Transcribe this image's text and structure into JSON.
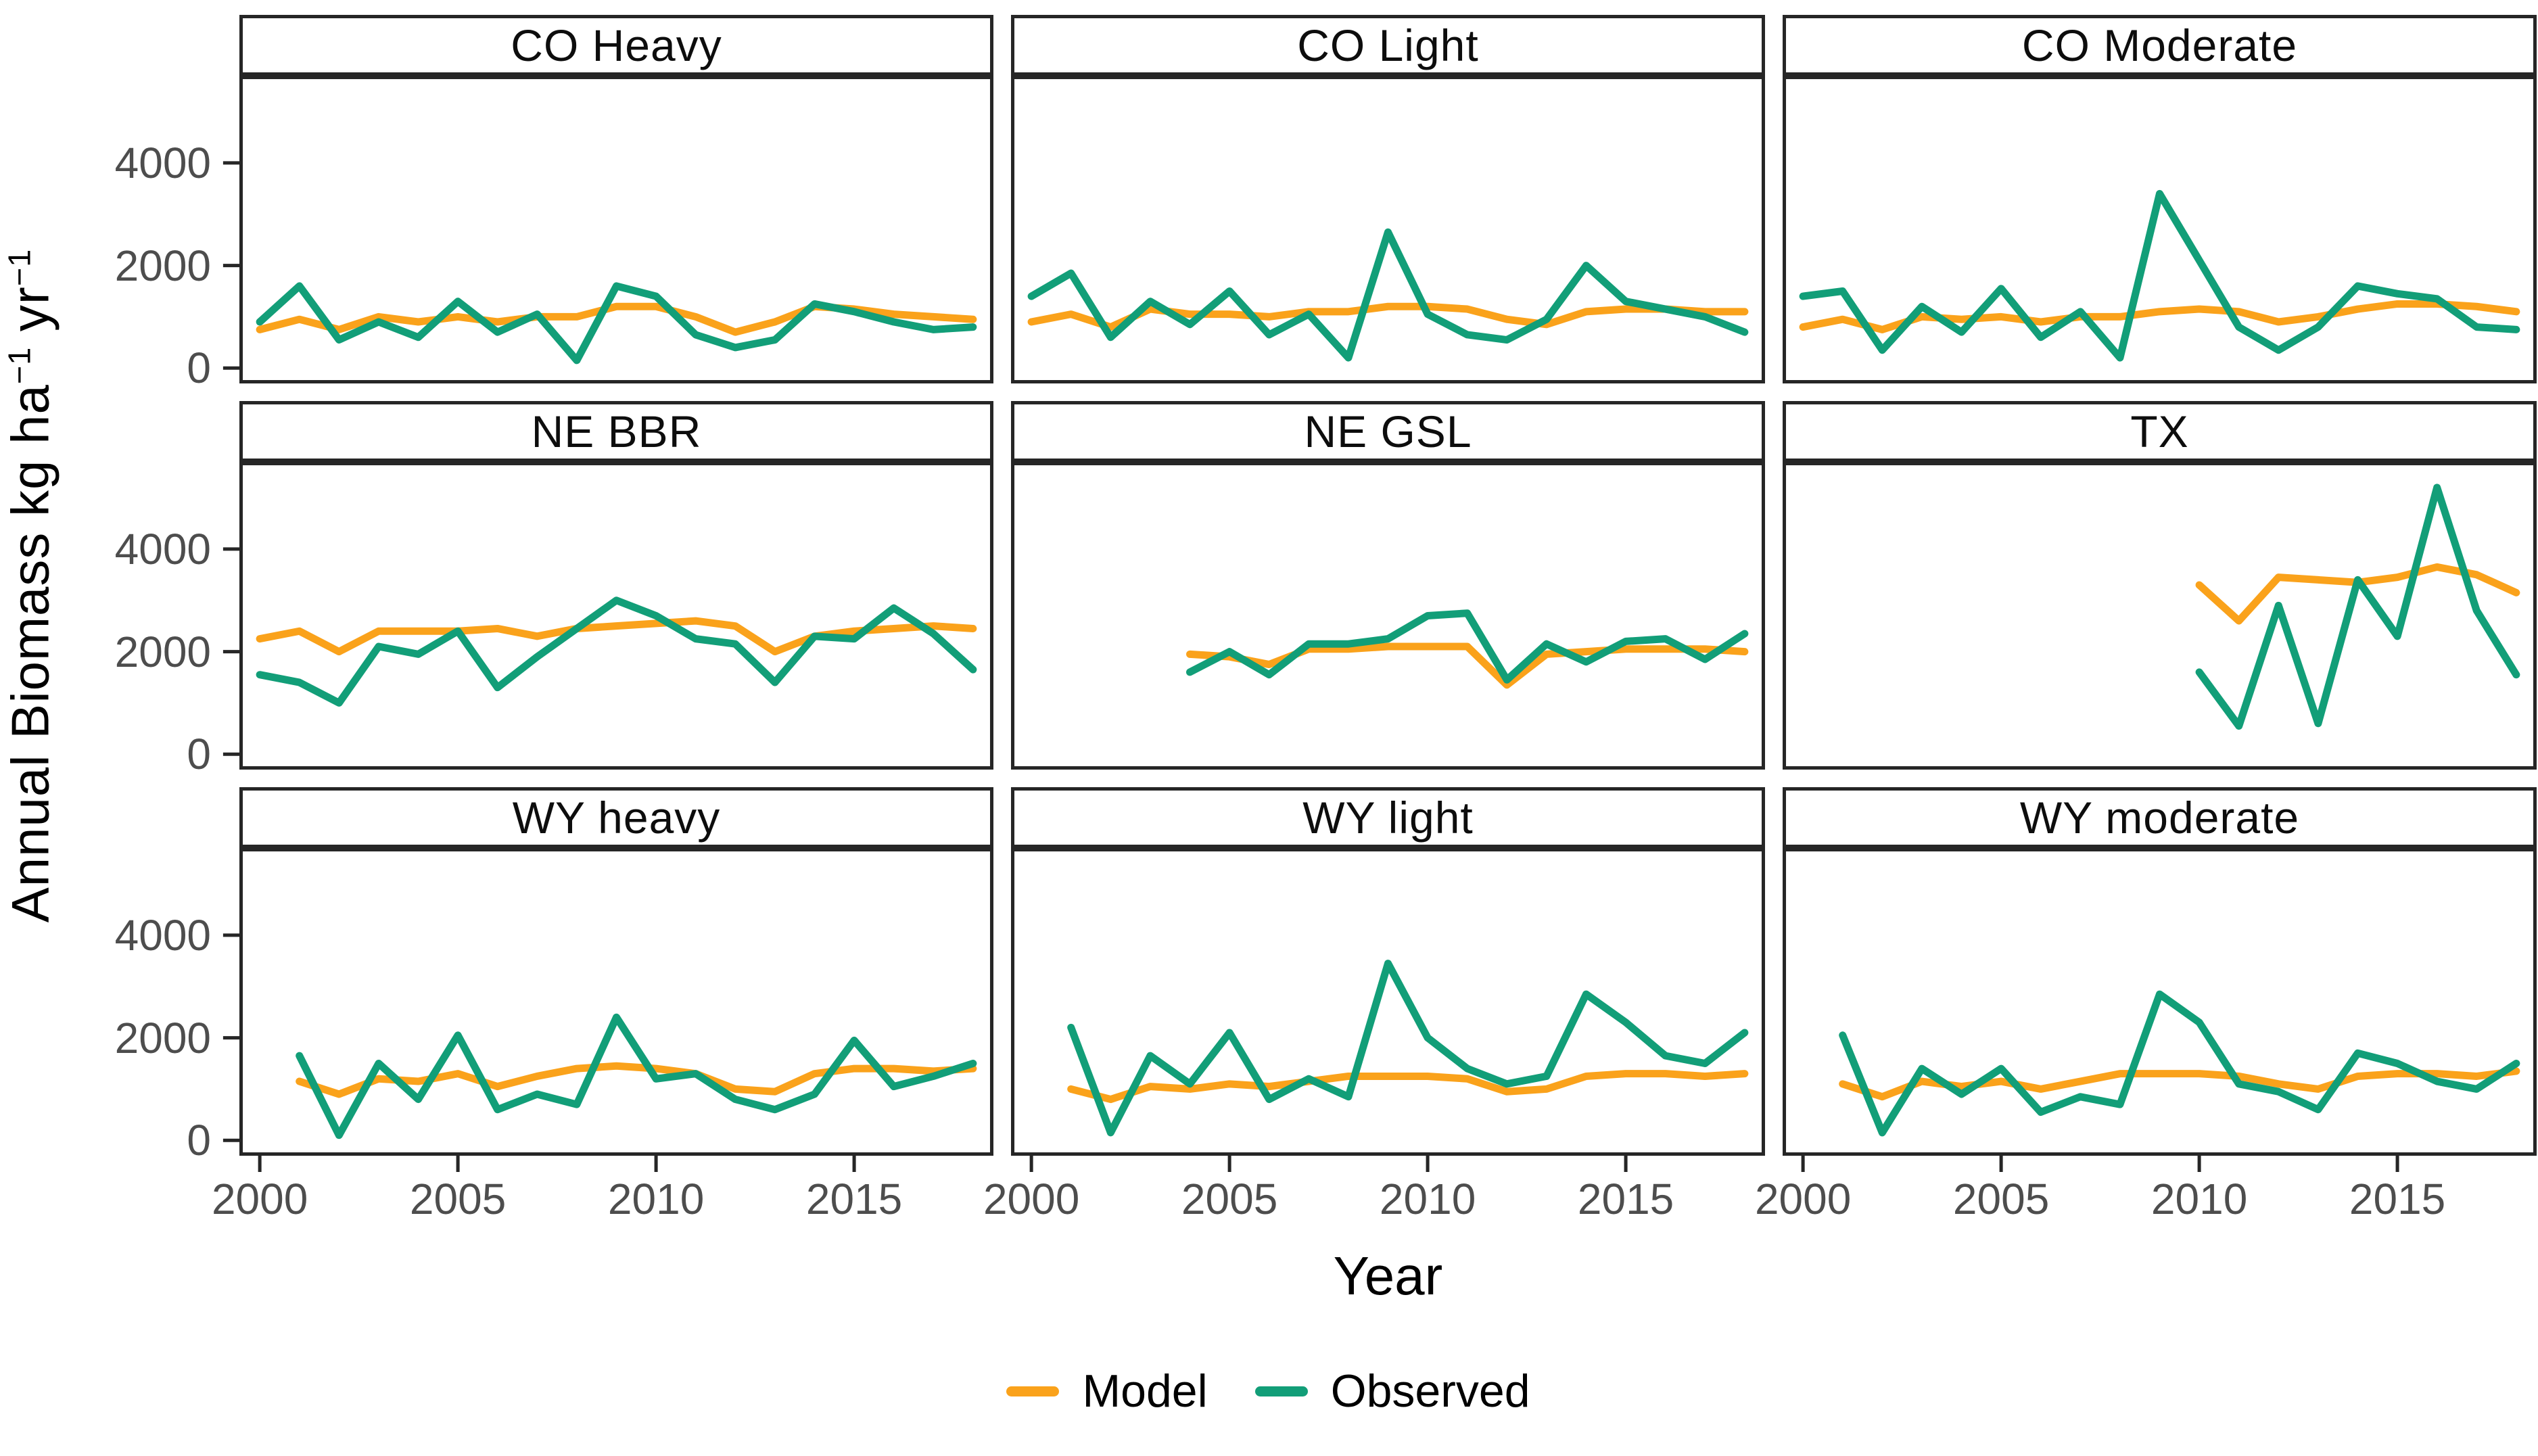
{
  "figure": {
    "xlabel": "Year",
    "ylabel_parts": {
      "pre": "Annual Biomass kg ha",
      "sup1": "−1",
      "mid": " yr",
      "sup2": "−1"
    }
  },
  "chart_data": {
    "type": "line",
    "title": "",
    "xlabel": "Year",
    "ylabel": "Annual Biomass kg ha-1 yr-1",
    "grid": "off",
    "legend_position": "bottom",
    "x_domain": [
      1999.5,
      2018.5
    ],
    "y_domain": [
      -300,
      5700
    ],
    "x_ticks": [
      2000,
      2005,
      2010,
      2015
    ],
    "x_tick_labels": [
      "2000",
      "2005",
      "2010",
      "2015"
    ],
    "y_ticks": [
      4000,
      2000,
      0
    ],
    "y_tick_labels": [
      "4000",
      "2000",
      "0"
    ],
    "legend": [
      {
        "label": "Model",
        "color": "#FAA21B"
      },
      {
        "label": "Observed",
        "color": "#129E78"
      }
    ],
    "facets": [
      {
        "title": "CO Heavy",
        "start_year": 2000,
        "model": [
          750,
          950,
          750,
          1000,
          900,
          1000,
          900,
          1000,
          1000,
          1200,
          1200,
          1000,
          700,
          900,
          1200,
          1150,
          1050,
          1000,
          950
        ],
        "observed": [
          900,
          1600,
          550,
          900,
          600,
          1300,
          700,
          1050,
          150,
          1600,
          1400,
          650,
          400,
          550,
          1250,
          1100,
          900,
          750,
          800
        ]
      },
      {
        "title": "CO Light",
        "start_year": 2000,
        "model": [
          900,
          1050,
          800,
          1150,
          1050,
          1050,
          1000,
          1100,
          1100,
          1200,
          1200,
          1150,
          950,
          850,
          1100,
          1150,
          1150,
          1100,
          1100
        ],
        "observed": [
          1400,
          1850,
          600,
          1300,
          850,
          1500,
          650,
          1050,
          200,
          2650,
          1050,
          650,
          550,
          950,
          2000,
          1300,
          1150,
          1000,
          700
        ]
      },
      {
        "title": "CO Moderate",
        "start_year": 2000,
        "model": [
          800,
          950,
          750,
          1000,
          950,
          1000,
          900,
          1000,
          1000,
          1100,
          1150,
          1100,
          900,
          1000,
          1150,
          1250,
          1250,
          1200,
          1100
        ],
        "observed": [
          1400,
          1500,
          350,
          1200,
          700,
          1550,
          600,
          1100,
          200,
          3400,
          2100,
          800,
          350,
          800,
          1600,
          1450,
          1350,
          800,
          750
        ]
      },
      {
        "title": "NE BBR",
        "start_year": 2000,
        "model": [
          2250,
          2400,
          2000,
          2400,
          2400,
          2400,
          2450,
          2300,
          2450,
          2500,
          2550,
          2600,
          2500,
          2000,
          2300,
          2400,
          2450,
          2500,
          2450
        ],
        "observed": [
          1550,
          1400,
          1000,
          2100,
          1950,
          2400,
          1300,
          1900,
          2450,
          3000,
          2700,
          2250,
          2150,
          1400,
          2300,
          2250,
          2850,
          2350,
          1650
        ]
      },
      {
        "title": "NE GSL",
        "start_year": 2004,
        "model": [
          1950,
          1900,
          1750,
          2050,
          2050,
          2100,
          2100,
          2100,
          1350,
          1950,
          2000,
          2050,
          2050,
          2050,
          2000
        ],
        "observed": [
          1600,
          2000,
          1550,
          2150,
          2150,
          2250,
          2700,
          2750,
          1450,
          2150,
          1800,
          2200,
          2250,
          1850,
          2350
        ]
      },
      {
        "title": "TX",
        "start_year": 2010,
        "model": [
          3300,
          2600,
          3450,
          3400,
          3350,
          3450,
          3650,
          3500,
          3150
        ],
        "observed": [
          1600,
          550,
          2900,
          600,
          3400,
          2300,
          5200,
          2800,
          1550
        ]
      },
      {
        "title": "WY heavy",
        "start_year": 2001,
        "model": [
          1150,
          900,
          1200,
          1150,
          1300,
          1050,
          1250,
          1400,
          1450,
          1400,
          1300,
          1000,
          950,
          1300,
          1400,
          1400,
          1350,
          1400
        ],
        "observed": [
          1650,
          100,
          1500,
          800,
          2050,
          600,
          900,
          700,
          2400,
          1200,
          1300,
          800,
          600,
          900,
          1950,
          1050,
          1250,
          1500
        ]
      },
      {
        "title": "WY light",
        "start_year": 2001,
        "model": [
          1000,
          800,
          1050,
          1000,
          1100,
          1050,
          1150,
          1250,
          1250,
          1250,
          1200,
          950,
          1000,
          1250,
          1300,
          1300,
          1250,
          1300
        ],
        "observed": [
          2200,
          150,
          1650,
          1100,
          2100,
          800,
          1200,
          850,
          3450,
          2000,
          1400,
          1100,
          1250,
          2850,
          2300,
          1650,
          1500,
          2100
        ]
      },
      {
        "title": "WY moderate",
        "start_year": 2001,
        "model": [
          1100,
          850,
          1150,
          1050,
          1150,
          1000,
          1150,
          1300,
          1300,
          1300,
          1250,
          1100,
          1000,
          1250,
          1300,
          1300,
          1250,
          1350
        ],
        "observed": [
          2050,
          150,
          1400,
          900,
          1400,
          550,
          850,
          700,
          2850,
          2300,
          1100,
          950,
          600,
          1700,
          1500,
          1150,
          1000,
          1500
        ]
      }
    ]
  }
}
